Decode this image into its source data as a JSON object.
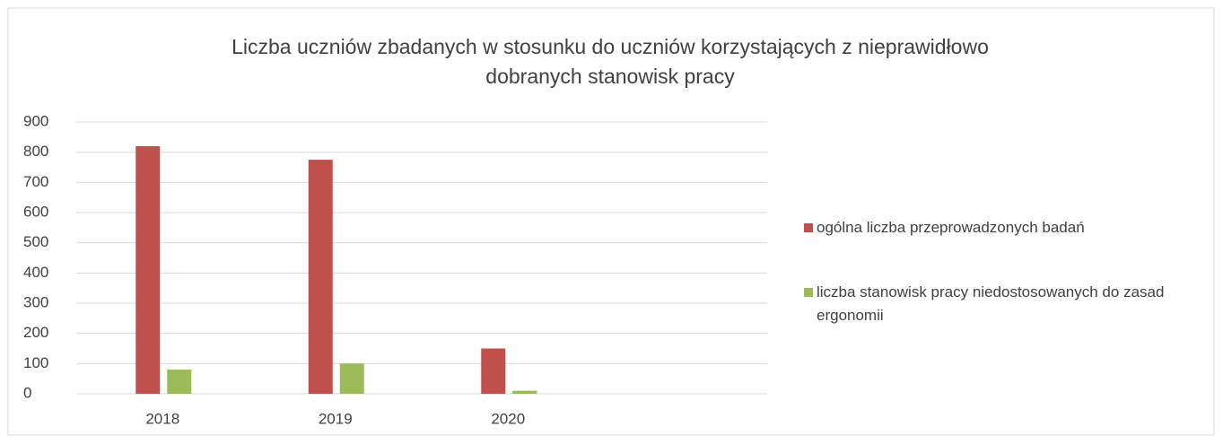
{
  "chart_data": {
    "type": "bar",
    "title": [
      "Liczba uczniów zbadanych w stosunku do uczniów korzystających z nieprawidłowo",
      "dobranych stanowisk pracy"
    ],
    "categories": [
      "2018",
      "2019",
      "2020",
      null
    ],
    "series": [
      {
        "name": "ogólna liczba przeprowadzonych badań",
        "color": "#c0504d",
        "values": [
          820,
          775,
          150,
          null
        ]
      },
      {
        "name": "liczba stanowisk pracy  niedostosowanych do zasad ergonomii",
        "color": "#9bbb59",
        "values": [
          80,
          100,
          10,
          null
        ]
      }
    ],
    "ylim": [
      0,
      900
    ],
    "yticks": [
      0,
      100,
      200,
      300,
      400,
      500,
      600,
      700,
      800,
      900
    ],
    "grid": true,
    "legend": "right"
  }
}
